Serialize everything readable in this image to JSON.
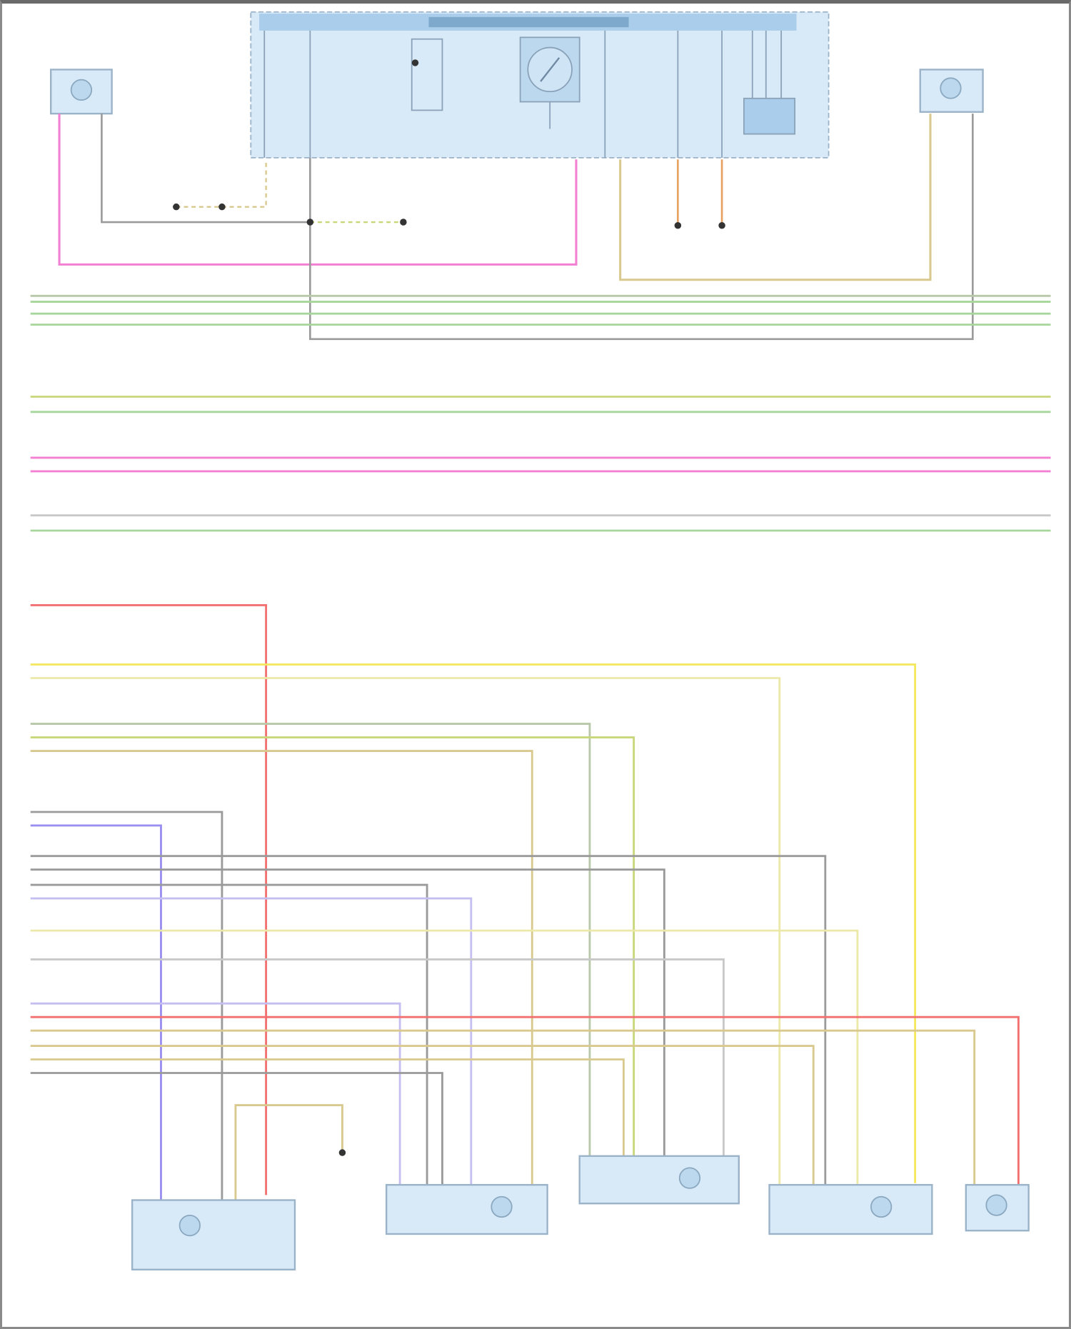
{
  "colors": {
    "module_fill": "#d8e9f8",
    "module_header": "#a9cdea",
    "module_border": "#9bb3c8",
    "pink": "#f27fd2",
    "gray": "#9a9a9a",
    "tan": "#d9c98e",
    "yellow": "#f4e85c",
    "light_yellow": "#ece9a8",
    "yellow_green": "#c9d77a",
    "green": "#a6d69a",
    "gray_green": "#b8c8a8",
    "purple": "#9a8ff0",
    "light_purple": "#c4bff0",
    "red": "#f27070",
    "orange": "#e8a060",
    "light_gray": "#c8c8c8"
  },
  "wire_colors_bus": [
    "gray_green",
    "green",
    "green",
    "green",
    "yellow_green",
    "green",
    "pink",
    "pink",
    "light_gray",
    "green"
  ],
  "wire_colors_bottom": [
    "red",
    "yellow",
    "light_yellow",
    "gray_green",
    "yellow_green",
    "tan",
    "gray",
    "purple",
    "gray",
    "gray",
    "gray",
    "light_purple",
    "light_yellow",
    "light_gray",
    "light_purple",
    "red",
    "tan",
    "tan",
    "tan",
    "gray"
  ]
}
